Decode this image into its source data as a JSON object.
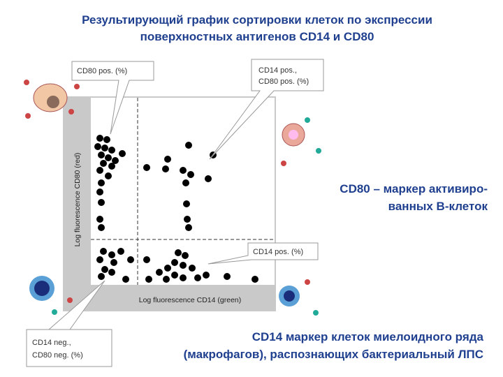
{
  "title": {
    "lines": [
      "Результирующий график сортировки клеток по экспрессии",
      "поверхностных антигенов CD14 и CD80"
    ]
  },
  "plot": {
    "y_axis_label": "Log fluorescence CD80 (red)",
    "x_axis_label": "Log fluorescence CD14 (green)"
  },
  "callouts": [
    {
      "lines": [
        "CD80 pos. (%)"
      ]
    },
    {
      "lines": [
        "CD14 pos.,",
        "CD80 pos. (%)"
      ]
    },
    {
      "lines": [
        "CD14 pos. (%)"
      ]
    },
    {
      "lines": [
        "CD14 neg.,",
        "CD80 neg. (%)"
      ]
    }
  ],
  "notes": [
    {
      "lines": [
        "CD80 – маркер активиро-",
        "ванных B-клеток"
      ]
    },
    {
      "lines": [
        "CD14 маркер клеток миелоидного ряда",
        "(макрофагов), распознающих бактериальный ЛПС"
      ]
    }
  ]
}
